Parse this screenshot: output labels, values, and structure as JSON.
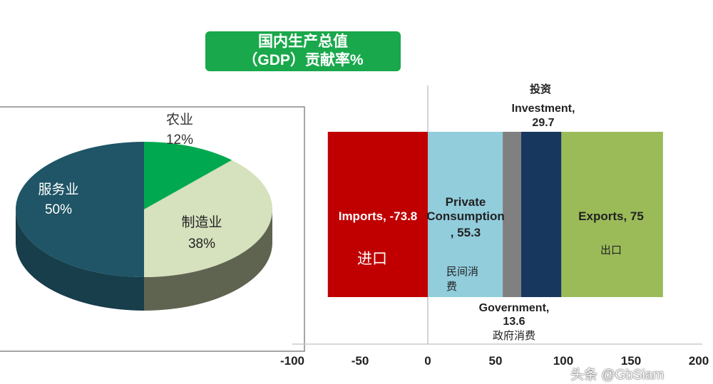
{
  "title": {
    "line1": "国内生产总值",
    "line2": "（GDP）贡献率%"
  },
  "watermark": "头条 @GbSiam",
  "chart_data": [
    {
      "type": "pie",
      "style": "3d",
      "slices": [
        {
          "label": "农业",
          "value": 12,
          "pct_label": "12%",
          "color": "#00a94f"
        },
        {
          "label": "制造业",
          "value": 38,
          "pct_label": "38%",
          "color": "#d6e1bd"
        },
        {
          "label": "服务业",
          "value": 50,
          "pct_label": "50%",
          "color": "#1f5566"
        }
      ]
    },
    {
      "type": "bar",
      "orientation": "horizontal-stacked",
      "xlim": [
        -100,
        200
      ],
      "xticks": [
        "-100",
        "-50",
        "0",
        "50",
        "100",
        "150",
        "200"
      ],
      "segments": [
        {
          "name": "Imports",
          "label": "Imports, -73.8",
          "cn": "进口",
          "value": -73.8,
          "color": "#c00000"
        },
        {
          "name": "Private Consumption",
          "label": "Private Consumption, 55.3",
          "cn": "民间消费",
          "value": 55.3,
          "color": "#92cddc"
        },
        {
          "name": "Government",
          "label": "Government, 13.6",
          "cn": "政府消费",
          "value": 13.6,
          "color": "#808080"
        },
        {
          "name": "Investment",
          "label": "Investment, 29.7",
          "cn": "投资",
          "value": 29.7,
          "color": "#17375e"
        },
        {
          "name": "Exports",
          "label": "Exports, 75",
          "cn": "出口",
          "value": 75,
          "color": "#9bbb59"
        }
      ]
    }
  ]
}
